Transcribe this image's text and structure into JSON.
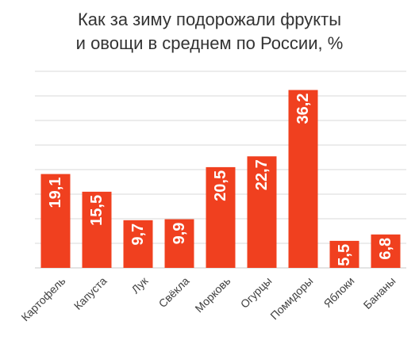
{
  "chart_data": {
    "type": "bar",
    "title_lines": [
      "Как за зиму подорожали фрукты",
      "и овощи в среднем по России, %"
    ],
    "categories": [
      "Картофель",
      "Капуста",
      "Лук",
      "Свёкла",
      "Морковь",
      "Огурцы",
      "Помидоры",
      "Яблоки",
      "Бананы"
    ],
    "values": [
      19.1,
      15.5,
      9.7,
      9.9,
      20.5,
      22.7,
      36.2,
      5.5,
      6.8
    ],
    "value_labels": [
      "19,1",
      "15,5",
      "9,7",
      "9,9",
      "20,5",
      "22,7",
      "36,2",
      "5,5",
      "6,8"
    ],
    "ylim": [
      0,
      40
    ],
    "grid": true,
    "bar_color": "#F0401F",
    "label_color": "#ffffff"
  }
}
